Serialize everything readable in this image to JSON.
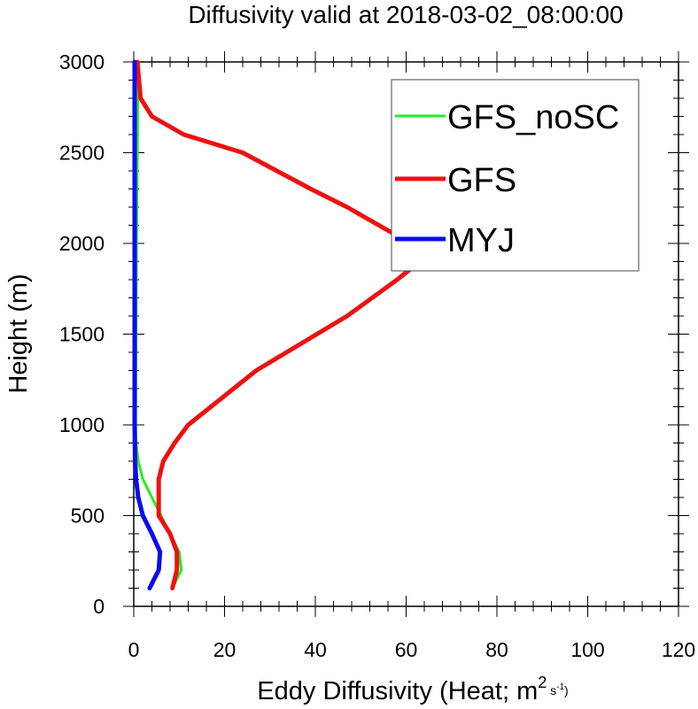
{
  "chart_data": {
    "type": "line",
    "title": "Diffusivity valid at 2018-03-02_08:00:00",
    "xlabel_main": "Eddy Diffusivity (Heat; m",
    "xlabel_sup": "2",
    "xlabel_unit": " s",
    "xlabel_unit_sup": "-1",
    "xlabel_close": ")",
    "ylabel": "Height (m)",
    "xlim": [
      0,
      120
    ],
    "ylim": [
      0,
      3000
    ],
    "x_ticks": [
      0,
      20,
      40,
      60,
      80,
      100,
      120
    ],
    "y_ticks": [
      0,
      500,
      1000,
      1500,
      2000,
      2500,
      3000
    ],
    "x_tick_labels": [
      "0",
      "20",
      "40",
      "60",
      "80",
      "100",
      "120"
    ],
    "y_tick_labels": [
      "0",
      "500",
      "1000",
      "1500",
      "2000",
      "2500",
      "3000"
    ],
    "grid": false,
    "legend_position": "top-right",
    "series": [
      {
        "name": "GFS_noSC",
        "color": "#22ee22",
        "points": [
          [
            8.5,
            100
          ],
          [
            10.5,
            200
          ],
          [
            10,
            300
          ],
          [
            8,
            400
          ],
          [
            6,
            500
          ],
          [
            4,
            600
          ],
          [
            2,
            700
          ],
          [
            1,
            800
          ],
          [
            0.5,
            900
          ],
          [
            0.4,
            1000
          ],
          [
            0.5,
            1500
          ],
          [
            0.6,
            2000
          ],
          [
            0.8,
            2500
          ],
          [
            0.9,
            2800
          ],
          [
            0.8,
            3000
          ]
        ]
      },
      {
        "name": "GFS",
        "color": "#ee1111",
        "points": [
          [
            8.5,
            100
          ],
          [
            9.5,
            200
          ],
          [
            9.5,
            300
          ],
          [
            8,
            400
          ],
          [
            5.5,
            500
          ],
          [
            5.5,
            600
          ],
          [
            5.5,
            700
          ],
          [
            6.5,
            800
          ],
          [
            9,
            900
          ],
          [
            12,
            1000
          ],
          [
            22,
            1200
          ],
          [
            27,
            1300
          ],
          [
            47,
            1600
          ],
          [
            58,
            1800
          ],
          [
            63,
            1900
          ],
          [
            61,
            2000
          ],
          [
            47,
            2200
          ],
          [
            39,
            2300
          ],
          [
            24,
            2500
          ],
          [
            11,
            2600
          ],
          [
            4,
            2700
          ],
          [
            1.5,
            2800
          ],
          [
            0.8,
            3000
          ]
        ]
      },
      {
        "name": "MYJ",
        "color": "#0b0bee",
        "points": [
          [
            3.5,
            100
          ],
          [
            5.5,
            200
          ],
          [
            5.8,
            300
          ],
          [
            4,
            400
          ],
          [
            2,
            500
          ],
          [
            1,
            600
          ],
          [
            0.5,
            700
          ],
          [
            0.3,
            800
          ],
          [
            0.2,
            1000
          ],
          [
            0.2,
            1500
          ],
          [
            0.2,
            2000
          ],
          [
            0.2,
            2500
          ],
          [
            0.2,
            3000
          ]
        ]
      }
    ]
  }
}
